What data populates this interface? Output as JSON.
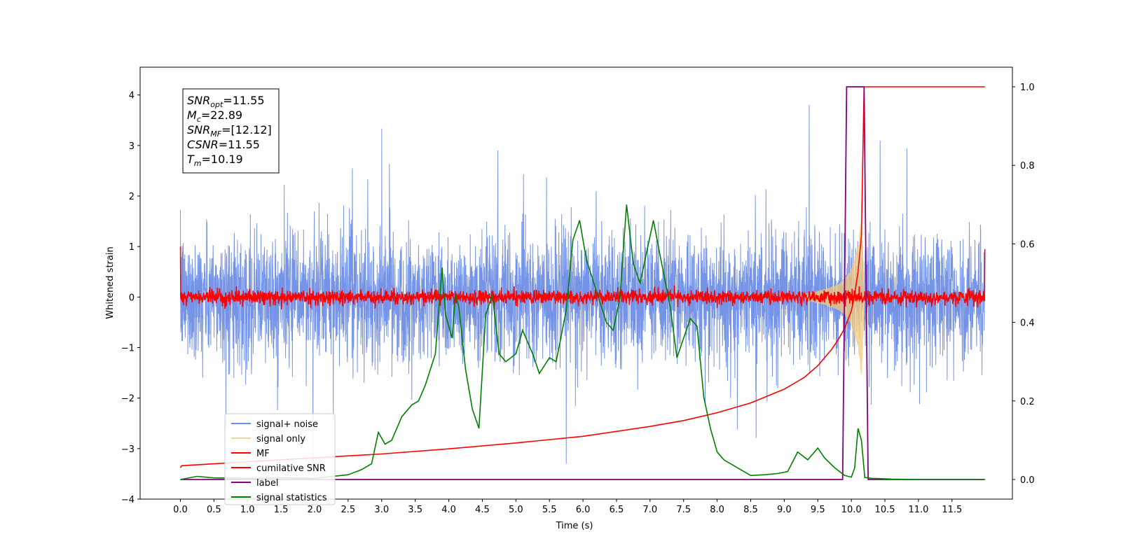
{
  "chart_data": {
    "type": "line",
    "xlabel": "Time (s)",
    "ylabel_left": "Whitened strain",
    "ylabel_right": "",
    "xlim": [
      -0.6,
      12.4
    ],
    "ylim_left": [
      -4,
      4.55
    ],
    "ylim_right": [
      -0.05,
      1.05
    ],
    "x_ticks": [
      "0.0",
      "0.5",
      "1.0",
      "1.5",
      "2.0",
      "2.5",
      "3.0",
      "3.5",
      "4.0",
      "4.5",
      "5.0",
      "5.5",
      "6.0",
      "6.5",
      "7.0",
      "7.5",
      "8.0",
      "8.5",
      "9.0",
      "9.5",
      "10.0",
      "10.5",
      "11.0",
      "11.5"
    ],
    "y_ticks_left": [
      "4",
      "3",
      "2",
      "1",
      "0",
      "−1",
      "−2",
      "−3",
      "−4"
    ],
    "y_ticks_right": [
      "1.0",
      "0.8",
      "0.6",
      "0.4",
      "0.2",
      "0.0"
    ],
    "grid": false,
    "legend_position": "lower-left",
    "stats_box": [
      {
        "var": "SNR",
        "sub": "opt",
        "rest": "=11.55"
      },
      {
        "var": "M",
        "sub": "c",
        "rest": "=22.89"
      },
      {
        "var": "SNR",
        "sub": "MF",
        "rest": "=[12.12]"
      },
      {
        "var": "CSNR",
        "sub": "",
        "rest": "=11.55"
      },
      {
        "var": "T",
        "sub": "m",
        "rest": "=10.19"
      }
    ],
    "series": [
      {
        "name": "signal+ noise",
        "color": "#6f8ee6",
        "axis": "left",
        "description_of_values": "noise envelope approx ±1.6 with spikes up to 3.8, x from 0 to 12"
      },
      {
        "name": "signal only",
        "color": "#f5c97a",
        "axis": "left",
        "envelope": {
          "x": [
            9.3,
            9.6,
            9.8,
            9.9,
            10.0,
            10.1,
            10.15,
            10.2
          ],
          "amp": [
            0.05,
            0.15,
            0.25,
            0.35,
            0.55,
            1.0,
            1.6,
            0.0
          ]
        }
      },
      {
        "name": "MF",
        "color": "#ff0000",
        "axis": "left",
        "description_of_values": "noise around 0, amplitude approx ±0.2"
      },
      {
        "name": "cumilative SNR",
        "color": "#ff0000",
        "axis": "right",
        "x": [
          0.0,
          0.02,
          1,
          2,
          3,
          4,
          5,
          6,
          7,
          7.5,
          8,
          8.5,
          9,
          9.3,
          9.5,
          9.7,
          9.8,
          9.9,
          10.0,
          10.05,
          10.1,
          10.15,
          10.19,
          11.0,
          11.99
        ],
        "y": [
          0.03,
          0.035,
          0.045,
          0.055,
          0.065,
          0.078,
          0.093,
          0.11,
          0.135,
          0.15,
          0.17,
          0.195,
          0.23,
          0.26,
          0.29,
          0.33,
          0.355,
          0.385,
          0.43,
          0.47,
          0.53,
          0.62,
          1.0,
          1.0,
          1.0
        ]
      },
      {
        "name": "label",
        "color": "#800080",
        "axis": "right",
        "x": [
          0.0,
          9.87,
          9.93,
          10.19,
          10.25,
          11.99
        ],
        "y": [
          0.0,
          0.0,
          1.0,
          1.0,
          0.0,
          0.0
        ]
      },
      {
        "name": "signal statistics",
        "color": "#008000",
        "axis": "right",
        "x": [
          0.0,
          0.25,
          0.5,
          1.0,
          1.5,
          2.0,
          2.5,
          2.7,
          2.85,
          2.95,
          3.05,
          3.15,
          3.3,
          3.45,
          3.55,
          3.65,
          3.8,
          3.9,
          3.95,
          4.05,
          4.1,
          4.15,
          4.25,
          4.35,
          4.45,
          4.55,
          4.65,
          4.75,
          4.85,
          5.0,
          5.1,
          5.25,
          5.35,
          5.5,
          5.6,
          5.75,
          5.85,
          5.95,
          6.05,
          6.2,
          6.35,
          6.45,
          6.55,
          6.65,
          6.75,
          6.85,
          6.95,
          7.05,
          7.15,
          7.3,
          7.4,
          7.5,
          7.6,
          7.7,
          7.8,
          7.9,
          8.0,
          8.1,
          8.3,
          8.5,
          8.7,
          8.9,
          9.05,
          9.2,
          9.35,
          9.5,
          9.6,
          9.75,
          9.9,
          10.0,
          10.05,
          10.1,
          10.15,
          10.2,
          10.3,
          10.6,
          11.0,
          11.5,
          11.99
        ],
        "y": [
          0.0,
          0.008,
          0.004,
          0.003,
          0.004,
          0.003,
          0.012,
          0.025,
          0.04,
          0.12,
          0.09,
          0.1,
          0.16,
          0.19,
          0.2,
          0.24,
          0.32,
          0.54,
          0.42,
          0.36,
          0.47,
          0.44,
          0.28,
          0.18,
          0.13,
          0.42,
          0.47,
          0.32,
          0.3,
          0.32,
          0.38,
          0.32,
          0.27,
          0.31,
          0.3,
          0.43,
          0.61,
          0.66,
          0.56,
          0.48,
          0.4,
          0.38,
          0.46,
          0.7,
          0.55,
          0.5,
          0.58,
          0.66,
          0.57,
          0.44,
          0.31,
          0.36,
          0.41,
          0.39,
          0.21,
          0.13,
          0.07,
          0.05,
          0.03,
          0.01,
          0.012,
          0.015,
          0.02,
          0.07,
          0.05,
          0.08,
          0.055,
          0.03,
          0.01,
          0.006,
          0.03,
          0.13,
          0.1,
          0.005,
          0.003,
          0.001,
          0.0,
          0.0,
          0.0
        ]
      }
    ]
  }
}
